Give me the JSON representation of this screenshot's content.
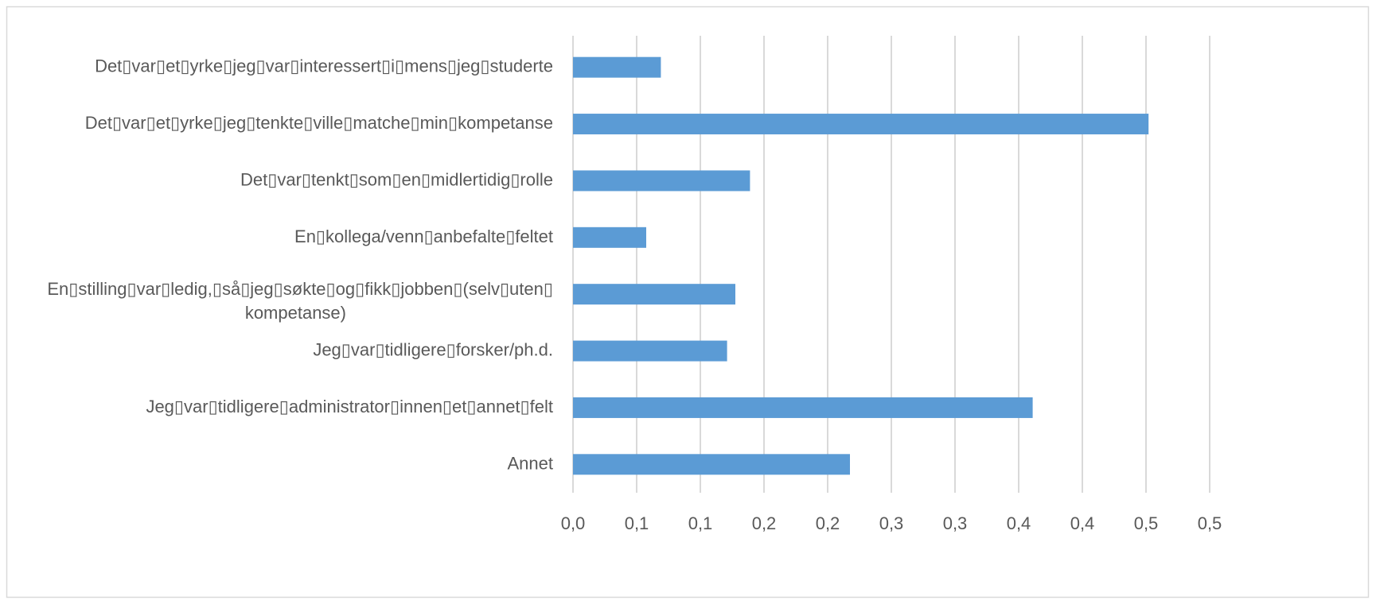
{
  "chart_data": {
    "type": "hbar",
    "categories": [
      "Det▯var▯et▯yrke▯jeg▯var▯interessert▯i▯mens▯jeg▯studerte",
      "Det▯var▯et▯yrke▯jeg▯tenkte▯ville▯matche▯min▯kompetanse",
      "Det▯var▯tenkt▯som▯en▯midlertidig▯rolle",
      "En▯kollega/venn▯anbefalte▯feltet",
      "En▯stilling▯var▯ledig,▯så▯jeg▯søkte▯og▯fikk▯jobben▯(selv▯uten▯\nkompetanse)",
      "Jeg▯var▯tidligere▯forsker/ph.d.",
      "Jeg▯var▯tidligere▯administrator▯innen▯et▯annet▯felt",
      "Annet"
    ],
    "values": [
      0.069,
      0.452,
      0.139,
      0.0575,
      0.1275,
      0.121,
      0.361,
      0.2175
    ],
    "color": "#5b9bd5",
    "xlim": [
      0,
      0.5
    ],
    "xticks": [
      {
        "value": 0,
        "label": "0,0"
      },
      {
        "value": 0.05,
        "label": "0,1"
      },
      {
        "value": 0.1,
        "label": "0,1"
      },
      {
        "value": 0.15,
        "label": "0,2"
      },
      {
        "value": 0.2,
        "label": "0,2"
      },
      {
        "value": 0.25,
        "label": "0,3"
      },
      {
        "value": 0.3,
        "label": "0,3"
      },
      {
        "value": 0.35,
        "label": "0,4"
      },
      {
        "value": 0.4,
        "label": "0,4"
      },
      {
        "value": 0.45,
        "label": "0,5"
      },
      {
        "value": 0.5,
        "label": "0,5"
      }
    ],
    "grid": true
  }
}
